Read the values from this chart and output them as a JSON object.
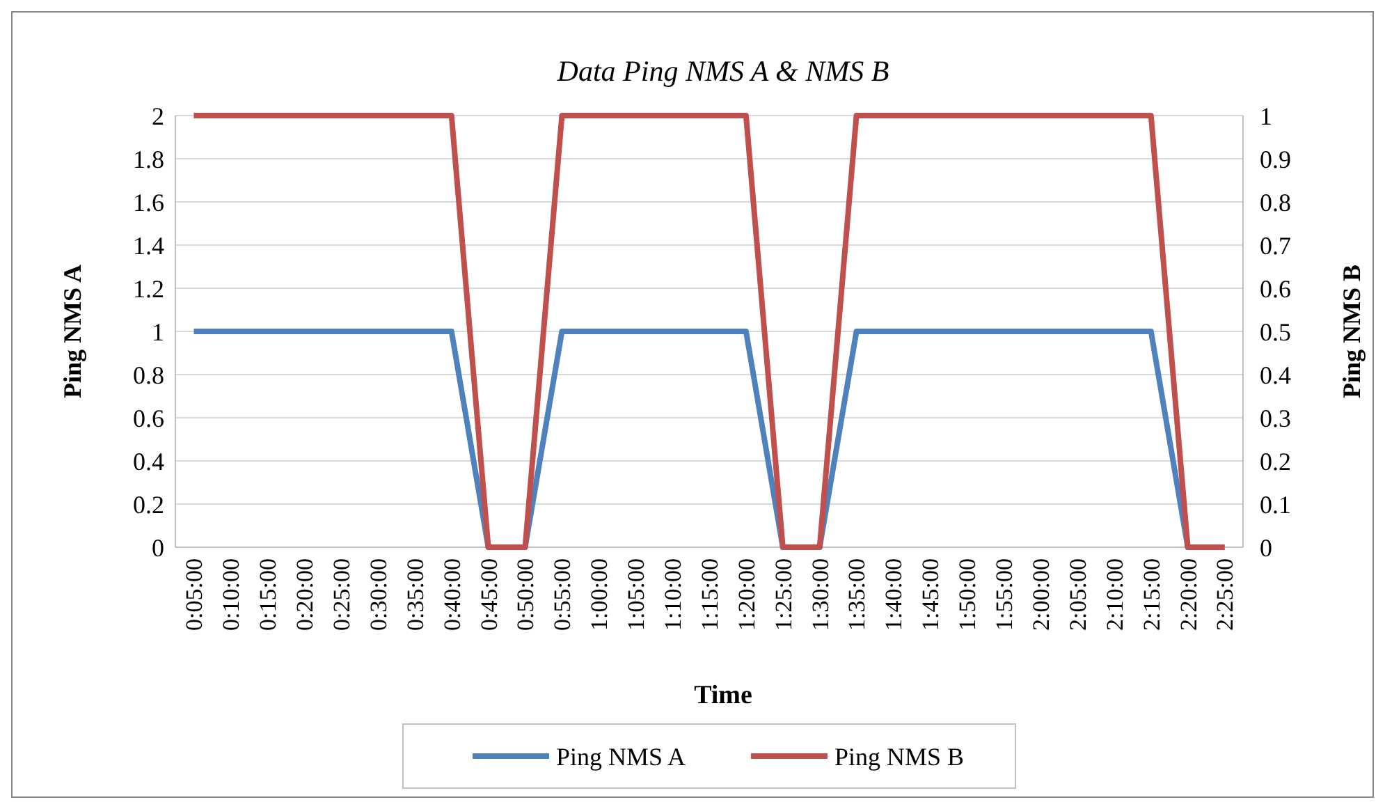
{
  "chart_data": {
    "type": "line",
    "title": "Data Ping NMS A & NMS B",
    "xlabel": "Time",
    "ylabel": "Ping NMS A",
    "y2label": "Ping NMS B",
    "categories": [
      "0:05:00",
      "0:10:00",
      "0:15:00",
      "0:20:00",
      "0:25:00",
      "0:30:00",
      "0:35:00",
      "0:40:00",
      "0:45:00",
      "0:50:00",
      "0:55:00",
      "1:00:00",
      "1:05:00",
      "1:10:00",
      "1:15:00",
      "1:20:00",
      "1:25:00",
      "1:30:00",
      "1:35:00",
      "1:40:00",
      "1:45:00",
      "1:50:00",
      "1:55:00",
      "2:00:00",
      "2:05:00",
      "2:10:00",
      "2:15:00",
      "2:20:00",
      "2:25:00"
    ],
    "series": [
      {
        "name": "Ping NMS A",
        "color": "#4f81bd",
        "values": [
          1,
          1,
          1,
          1,
          1,
          1,
          1,
          1,
          0,
          0,
          1,
          1,
          1,
          1,
          1,
          1,
          0,
          0,
          1,
          1,
          1,
          1,
          1,
          1,
          1,
          1,
          1,
          0,
          0
        ]
      },
      {
        "name": "Ping NMS B",
        "color": "#c0504d",
        "axis": "y2",
        "values": [
          1,
          1,
          1,
          1,
          1,
          1,
          1,
          1,
          0,
          0,
          1,
          1,
          1,
          1,
          1,
          1,
          0,
          0,
          1,
          1,
          1,
          1,
          1,
          1,
          1,
          1,
          1,
          0,
          0
        ]
      }
    ],
    "ylim": [
      0,
      2
    ],
    "yticks": [
      0,
      0.2,
      0.4,
      0.6,
      0.8,
      1,
      1.2,
      1.4,
      1.6,
      1.8,
      2
    ],
    "y2lim": [
      0,
      1
    ],
    "y2ticks": [
      0,
      0.1,
      0.2,
      0.3,
      0.4,
      0.5,
      0.6,
      0.7,
      0.8,
      0.9,
      1
    ],
    "grid": "y",
    "legend": "bottom",
    "marker": "none",
    "line_style": "solid"
  }
}
